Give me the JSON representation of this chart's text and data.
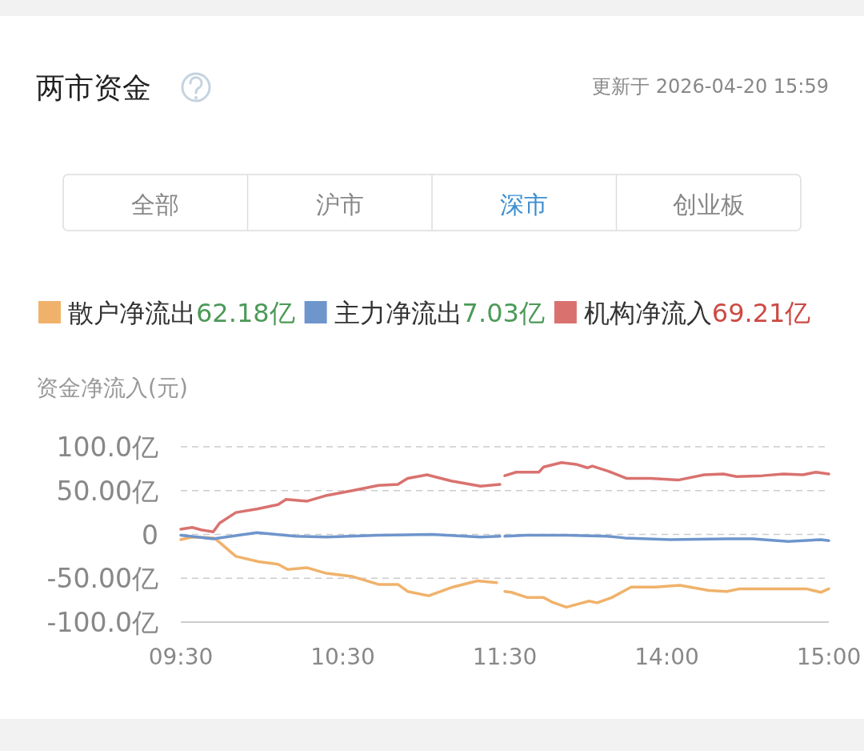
{
  "chart_data": [
    {
      "type": "line",
      "title": "两市资金",
      "ylabel": "资金净流入(元)",
      "annotations": [
        "62.18亿",
        "7.03亿",
        "69.21亿",
        "全部",
        "沪市",
        "深市",
        "创业板"
      ],
      "xlim": [
        9.5,
        11.5
      ],
      "xticks": [
        {
          "value": 9.5,
          "label": "09:30"
        },
        {
          "value": 10.5,
          "label": "10:30"
        },
        {
          "value": 11.5,
          "label": "11:30"
        }
      ],
      "ylim": [
        -100,
        100
      ],
      "yticks": [
        {
          "value": -100,
          "label": "-100.0亿"
        },
        {
          "value": -50,
          "label": "-50.00亿"
        },
        0,
        {
          "value": 50,
          "label": "50.00亿"
        },
        {
          "value": 100,
          "label": "100.0亿"
        }
      ],
      "grid": "y",
      "legend": "top",
      "marker": "none",
      "line_style": "solid",
      "series": [
        {
          "name": "散户净流出",
          "color": "#f0b26b",
          "x": [
            9.5,
            9.57,
            9.7,
            9.72,
            9.84,
            9.98,
            10.1,
            10.16,
            10.28,
            10.39,
            10.56,
            10.72,
            10.84,
            10.9,
            11.03,
            11.18,
            11.33,
            11.45
          ],
          "values": [
            -6,
            -3,
            -4,
            -6,
            -25,
            -31,
            -34,
            -40,
            -38,
            -44,
            -48,
            -57,
            -57,
            -65,
            -70,
            -60,
            -53,
            -55
          ]
        },
        {
          "name": "主力净流出",
          "color": "#6e95cc",
          "x": [
            9.5,
            9.7,
            9.97,
            10.21,
            10.4,
            10.72,
            11.05,
            11.35,
            11.47
          ],
          "values": [
            -1,
            -5,
            2,
            -2,
            -3,
            -1,
            0,
            -3,
            -2
          ]
        },
        {
          "name": "机构净流入",
          "color": "#d9726f",
          "x": [
            9.5,
            9.57,
            9.63,
            9.7,
            9.74,
            9.84,
            9.97,
            10.1,
            10.15,
            10.28,
            10.39,
            10.56,
            10.72,
            10.84,
            10.9,
            11.02,
            11.17,
            11.35,
            11.47
          ],
          "values": [
            6,
            8,
            5,
            3,
            13,
            25,
            29,
            34,
            40,
            38,
            44,
            50,
            56,
            57,
            64,
            68,
            61,
            55,
            57
          ]
        }
      ]
    },
    {
      "type": "line",
      "subtitle": "更新于 2026-04-20 15:59",
      "xlim": [
        13,
        15
      ],
      "xticks": [
        {
          "value": 14,
          "label": "14:00"
        },
        {
          "value": 15,
          "label": "15:00"
        }
      ],
      "ylim": [
        -100,
        100
      ],
      "yticks": [
        -100,
        -50,
        0,
        50,
        100
      ],
      "tick_labels": "x",
      "grid": "y",
      "marker": "none",
      "line_style": "solid",
      "series": [
        {
          "color": "#f0b26b",
          "x": [
            13.0,
            13.04,
            13.14,
            13.24,
            13.29,
            13.38,
            13.52,
            13.57,
            13.66,
            13.78,
            13.93,
            14.08,
            14.26,
            14.37,
            14.45,
            14.72,
            14.86,
            14.95,
            15.0
          ],
          "values": [
            -65,
            -66,
            -72,
            -72,
            -77,
            -83,
            -76,
            -78,
            -72,
            -60,
            -60,
            -58,
            -64,
            -65,
            -62,
            -62,
            -62,
            -66,
            -62
          ]
        },
        {
          "color": "#6e95cc",
          "x": [
            13.0,
            13.13,
            13.38,
            13.63,
            13.74,
            14.02,
            14.37,
            14.53,
            14.75,
            14.95,
            15.0
          ],
          "values": [
            -2,
            -1,
            -1,
            -2,
            -4,
            -6,
            -5,
            -5,
            -8,
            -6,
            -7
          ]
        },
        {
          "color": "#d9726f",
          "x": [
            13.0,
            13.07,
            13.21,
            13.24,
            13.35,
            13.44,
            13.51,
            13.54,
            13.64,
            13.75,
            13.9,
            14.07,
            14.23,
            14.35,
            14.43,
            14.59,
            14.72,
            14.84,
            14.92,
            15.0
          ],
          "values": [
            67,
            71,
            71,
            77,
            82,
            80,
            76,
            78,
            72,
            64,
            64,
            62,
            68,
            69,
            66,
            67,
            69,
            68,
            71,
            69
          ]
        }
      ]
    }
  ]
}
